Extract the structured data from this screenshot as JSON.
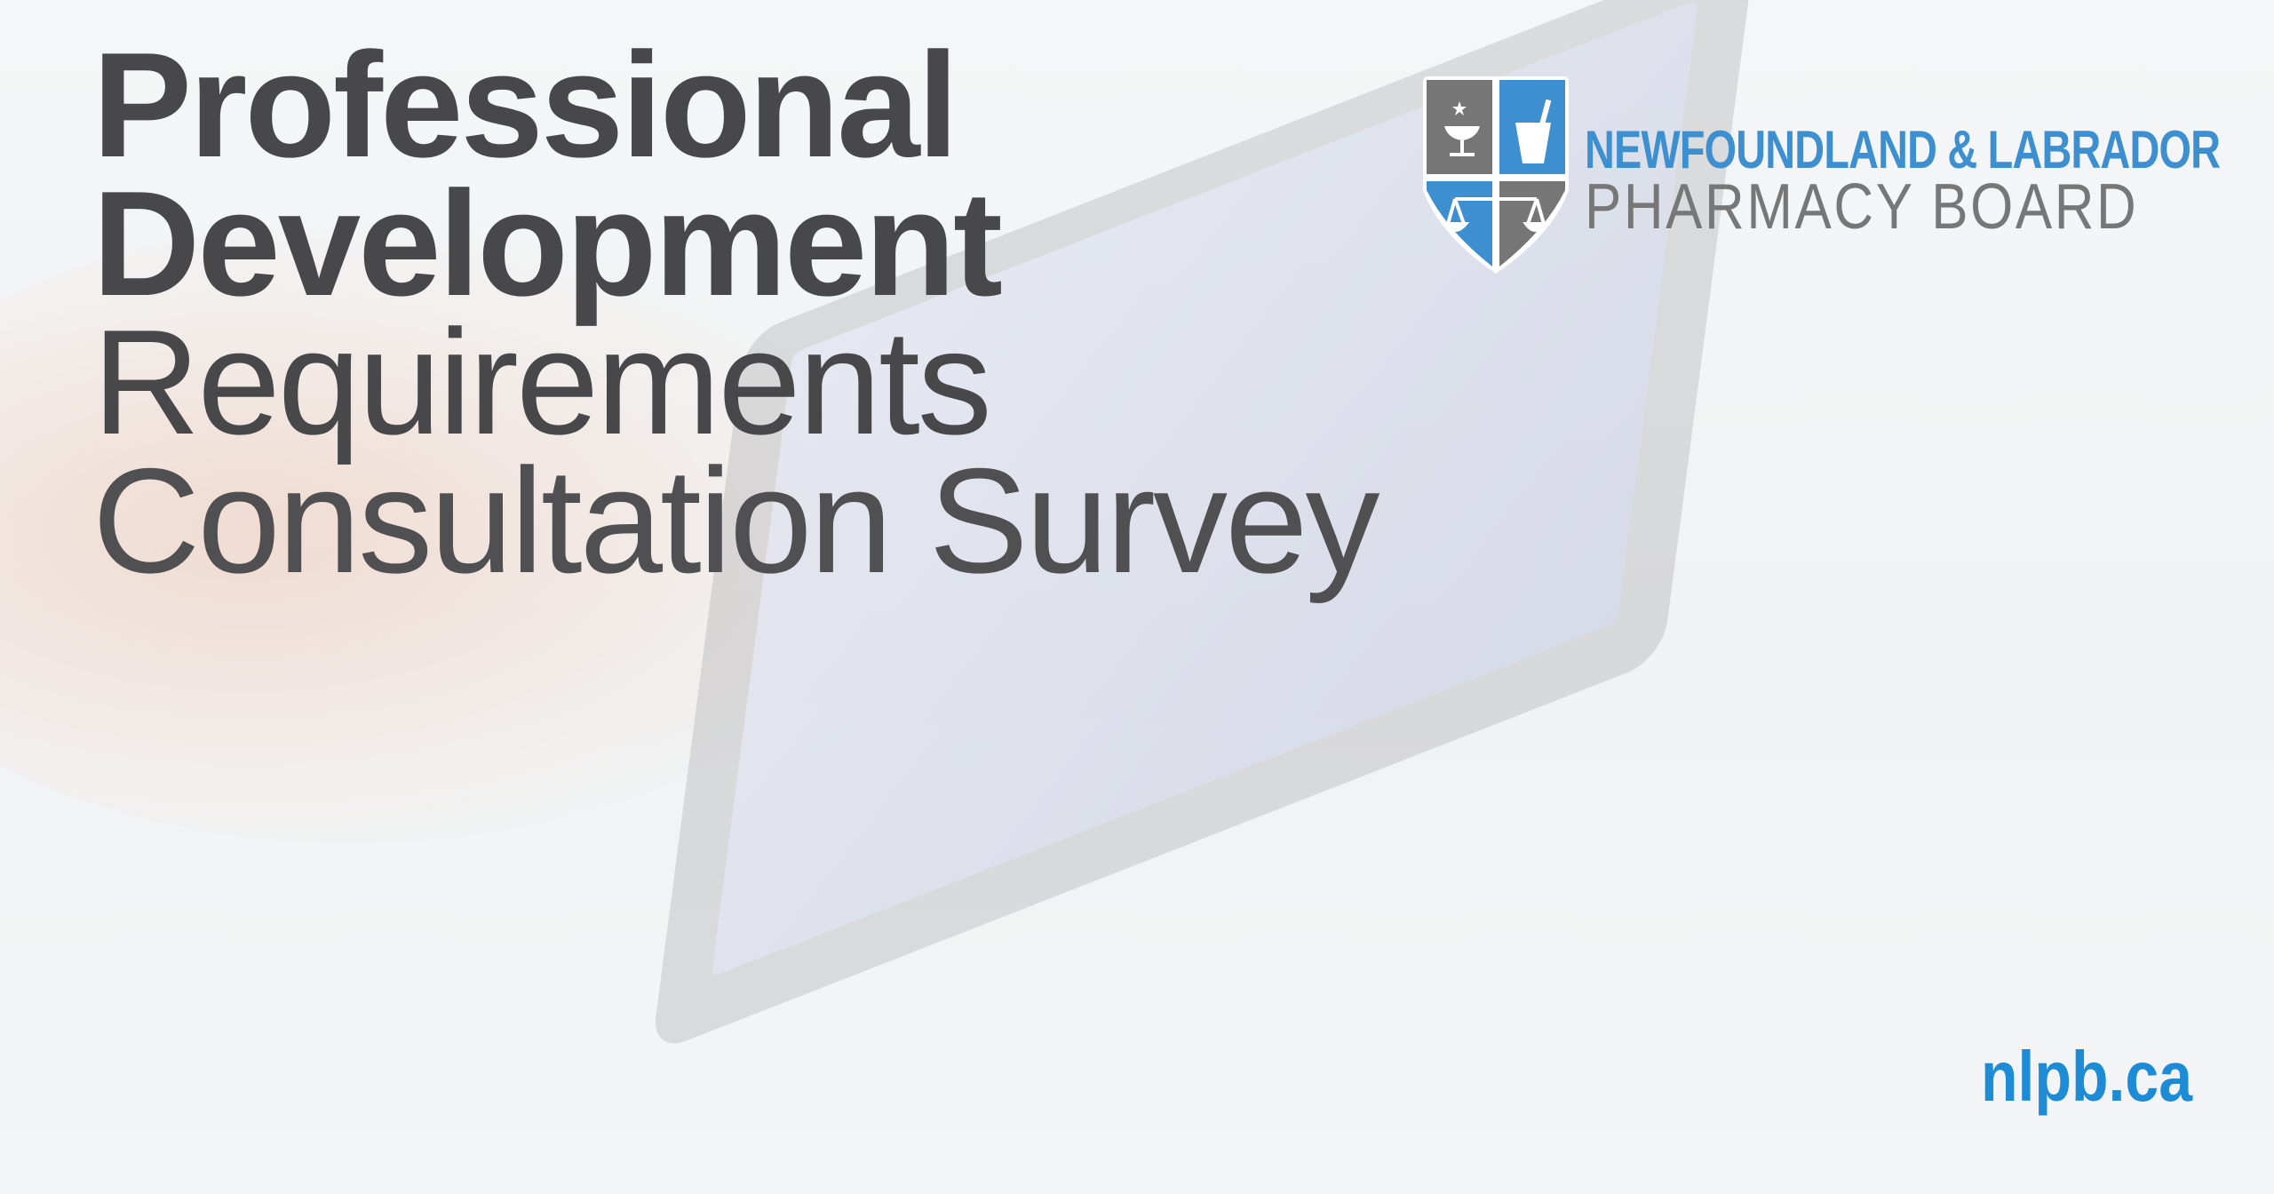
{
  "headline": {
    "line1": "Professional",
    "line2": "Development",
    "line3": "Requirements",
    "line4": "Consultation Survey"
  },
  "logo": {
    "org_line1": "NEWFOUNDLAND & LABRADOR",
    "org_line2": "PHARMACY BOARD",
    "icons": [
      "bowl-of-hygieia-icon",
      "mortar-pestle-icon",
      "scales-icon"
    ],
    "colors": {
      "blue": "#3d8fd0",
      "gray": "#767676"
    }
  },
  "website": "nlpb.ca",
  "colors": {
    "title": "#48484b",
    "url": "#1e8bd6"
  }
}
